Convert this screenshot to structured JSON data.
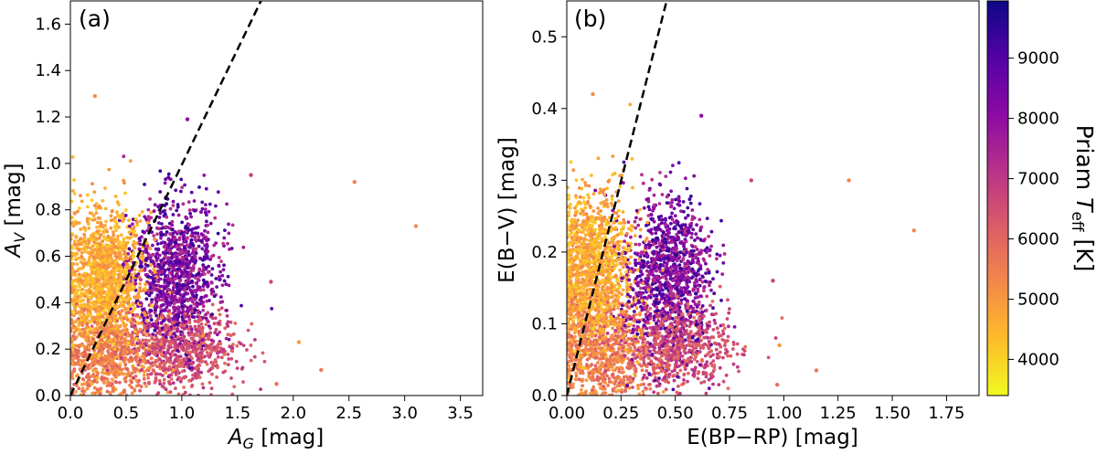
{
  "chart_data": [
    {
      "type": "scatter",
      "panel_label": "(a)",
      "xlabel_main": "A",
      "xlabel_sub": "G",
      "xlabel_unit": " [mag]",
      "ylabel_main": "A",
      "ylabel_sub": "V",
      "ylabel_unit": " [mag]",
      "xlim": [
        0,
        3.7
      ],
      "ylim": [
        0,
        1.7
      ],
      "xticks": [
        0.0,
        0.5,
        1.0,
        1.5,
        2.0,
        2.5,
        3.0,
        3.5
      ],
      "xtick_labels": [
        "0.0",
        "0.5",
        "1.0",
        "1.5",
        "2.0",
        "2.5",
        "3.0",
        "3.5"
      ],
      "yticks": [
        0.0,
        0.2,
        0.4,
        0.6,
        0.8,
        1.0,
        1.2,
        1.4,
        1.6
      ],
      "ytick_labels": [
        "0.0",
        "0.2",
        "0.4",
        "0.6",
        "0.8",
        "1.0",
        "1.2",
        "1.4",
        "1.6"
      ],
      "reference_line": {
        "style": "dashed",
        "x": [
          0,
          1.71
        ],
        "y": [
          0,
          1.7
        ]
      },
      "clusters": [
        {
          "name": "cool-stars",
          "cx": 0.3,
          "cy": 0.5,
          "sx": 0.18,
          "sy": 0.15,
          "n": 1400,
          "teff": [
            4000,
            5300
          ]
        },
        {
          "name": "cool-stars-low",
          "cx": 0.35,
          "cy": 0.18,
          "sx": 0.22,
          "sy": 0.1,
          "n": 700,
          "teff": [
            4800,
            6200
          ]
        },
        {
          "name": "hot-stars",
          "cx": 0.95,
          "cy": 0.52,
          "sx": 0.2,
          "sy": 0.16,
          "n": 1100,
          "teff": [
            7000,
            9500
          ]
        },
        {
          "name": "mid-low",
          "cx": 1.0,
          "cy": 0.2,
          "sx": 0.25,
          "sy": 0.08,
          "n": 650,
          "teff": [
            5800,
            7200
          ]
        }
      ],
      "outliers": [
        {
          "x": 0.22,
          "y": 1.29,
          "teff": 5200
        },
        {
          "x": 2.55,
          "y": 0.92,
          "teff": 5400
        },
        {
          "x": 3.1,
          "y": 0.73,
          "teff": 5300
        },
        {
          "x": 2.25,
          "y": 0.11,
          "teff": 5600
        },
        {
          "x": 1.85,
          "y": 0.05,
          "teff": 5800
        },
        {
          "x": 2.05,
          "y": 0.23,
          "teff": 5000
        },
        {
          "x": 1.62,
          "y": 0.95,
          "teff": 6800
        },
        {
          "x": 1.05,
          "y": 1.19,
          "teff": 8000
        },
        {
          "x": 1.8,
          "y": 0.49,
          "teff": 6700
        }
      ]
    },
    {
      "type": "scatter",
      "panel_label": "(b)",
      "xlabel": "E(BP−RP) [mag]",
      "ylabel": "E(B−V) [mag]",
      "xlim": [
        0,
        1.9
      ],
      "ylim": [
        0,
        0.55
      ],
      "xticks": [
        0.0,
        0.25,
        0.5,
        0.75,
        1.0,
        1.25,
        1.5,
        1.75
      ],
      "xtick_labels": [
        "0.00",
        "0.25",
        "0.50",
        "0.75",
        "1.00",
        "1.25",
        "1.50",
        "1.75"
      ],
      "yticks": [
        0.0,
        0.1,
        0.2,
        0.3,
        0.4,
        0.5
      ],
      "ytick_labels": [
        "0.0",
        "0.1",
        "0.2",
        "0.3",
        "0.4",
        "0.5"
      ],
      "reference_line": {
        "style": "dashed",
        "x": [
          0,
          0.46
        ],
        "y": [
          0,
          0.55
        ]
      },
      "clusters": [
        {
          "name": "cool-stars",
          "cx": 0.12,
          "cy": 0.17,
          "sx": 0.09,
          "sy": 0.055,
          "n": 1400,
          "teff": [
            4000,
            5300
          ]
        },
        {
          "name": "cool-stars-low",
          "cx": 0.16,
          "cy": 0.06,
          "sx": 0.11,
          "sy": 0.035,
          "n": 700,
          "teff": [
            4800,
            6200
          ]
        },
        {
          "name": "hot-stars",
          "cx": 0.47,
          "cy": 0.17,
          "sx": 0.1,
          "sy": 0.055,
          "n": 1100,
          "teff": [
            7000,
            9500
          ]
        },
        {
          "name": "mid-low",
          "cx": 0.5,
          "cy": 0.07,
          "sx": 0.13,
          "sy": 0.03,
          "n": 650,
          "teff": [
            5800,
            7200
          ]
        }
      ],
      "outliers": [
        {
          "x": 0.12,
          "y": 0.42,
          "teff": 5200
        },
        {
          "x": 1.3,
          "y": 0.3,
          "teff": 5400
        },
        {
          "x": 1.6,
          "y": 0.23,
          "teff": 5300
        },
        {
          "x": 1.15,
          "y": 0.035,
          "teff": 5600
        },
        {
          "x": 0.97,
          "y": 0.015,
          "teff": 5800
        },
        {
          "x": 0.95,
          "y": 0.16,
          "teff": 6800
        },
        {
          "x": 0.62,
          "y": 0.39,
          "teff": 8000
        },
        {
          "x": 0.85,
          "y": 0.3,
          "teff": 6700
        },
        {
          "x": 0.98,
          "y": 0.07,
          "teff": 5000
        }
      ]
    }
  ],
  "colorbar": {
    "title_main": "Priam ",
    "title_italic": "T",
    "title_sub": "eff",
    "title_unit": " [K]",
    "range": [
      3400,
      9950
    ],
    "ticks": [
      4000,
      5000,
      6000,
      7000,
      8000,
      9000
    ],
    "tick_labels": [
      "4000",
      "5000",
      "6000",
      "7000",
      "8000",
      "9000"
    ],
    "colormap": "plasma",
    "stops": [
      "#0d0887",
      "#5302a3",
      "#8b0aa5",
      "#b83289",
      "#db5c68",
      "#f48849",
      "#febc2a",
      "#f0f921"
    ]
  }
}
